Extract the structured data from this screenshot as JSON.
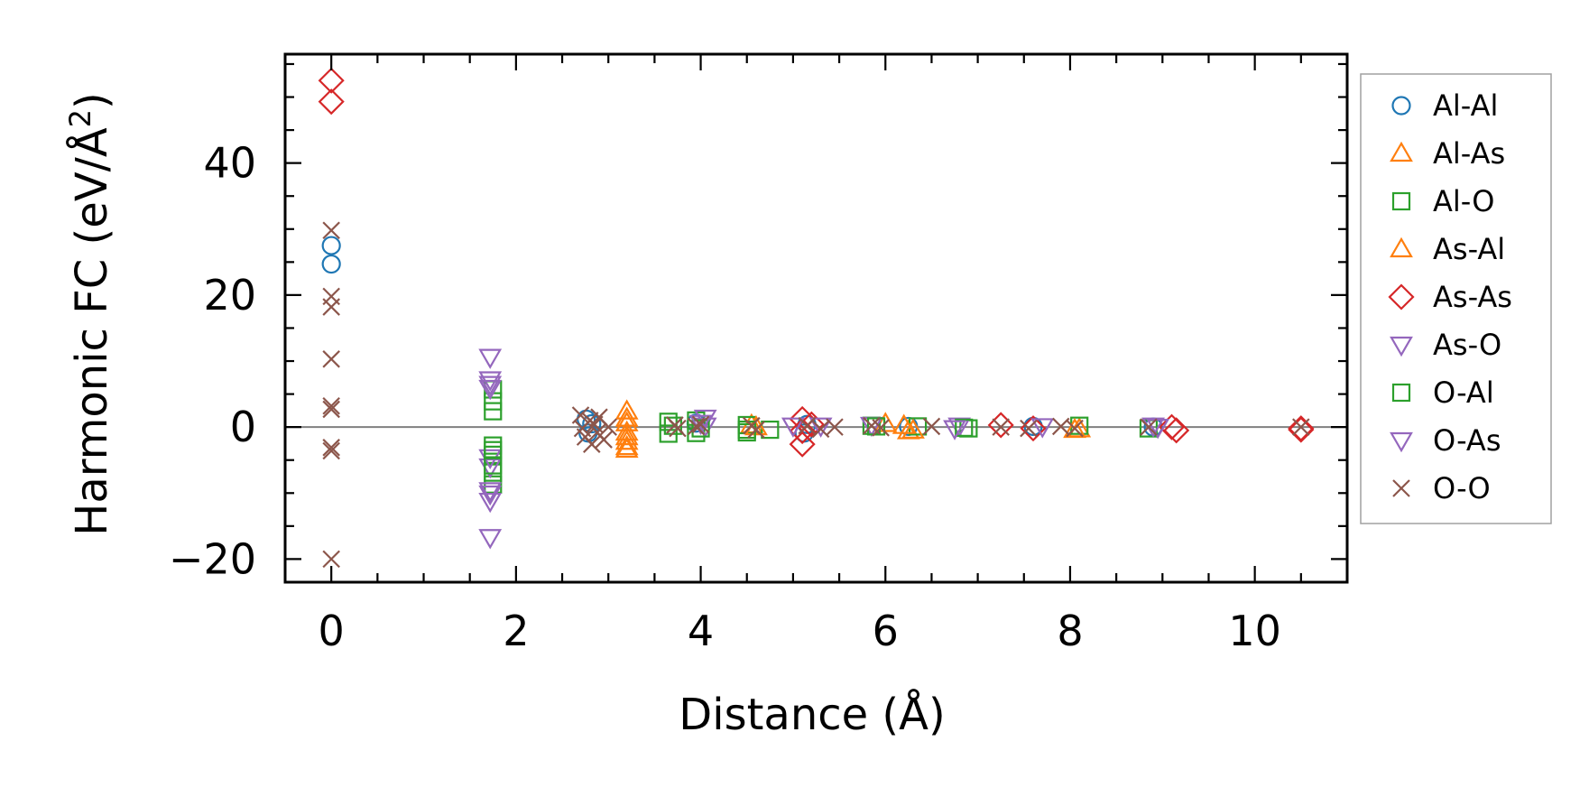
{
  "chart_data": {
    "type": "scatter",
    "title": "",
    "xlabel": "Distance (Å)",
    "ylabel_main": "Harmonic FC (eV/Å",
    "ylabel_sup": "2",
    "ylabel_close": ")",
    "xlim": [
      -0.5,
      11.0
    ],
    "ylim": [
      -23.5,
      56.5
    ],
    "x_ticks": [
      0,
      2,
      4,
      6,
      8,
      10
    ],
    "x_tick_labels": [
      "0",
      "2",
      "4",
      "6",
      "8",
      "10"
    ],
    "y_ticks": [
      -20,
      0,
      20,
      40
    ],
    "y_tick_labels": [
      "−20",
      "0",
      "20",
      "40"
    ],
    "reference_line_y": 0,
    "grid": false,
    "legend_position": "right-outside-top",
    "series": [
      {
        "name": "Al-Al",
        "marker": "circle",
        "color": "#1f77b4",
        "points": [
          [
            0,
            27.5
          ],
          [
            0,
            24.7
          ],
          [
            2.76,
            1.2
          ],
          [
            2.78,
            -0.9
          ],
          [
            2.82,
            0.5
          ],
          [
            3.95,
            0.6
          ],
          [
            5.12,
            -0.9
          ],
          [
            5.15,
            0.4
          ],
          [
            6.25,
            0.1
          ],
          [
            7.6,
            0.1
          ],
          [
            8.9,
            0.0
          ]
        ]
      },
      {
        "name": "Al-As",
        "marker": "triangle-up",
        "color": "#ff7f0e",
        "points": [
          [
            3.2,
            2.4
          ],
          [
            3.2,
            0.6
          ],
          [
            3.2,
            -0.8
          ],
          [
            3.2,
            -2.2
          ],
          [
            3.2,
            -3.4
          ],
          [
            4.55,
            0.3
          ],
          [
            6.0,
            0.5
          ],
          [
            6.25,
            -0.6
          ],
          [
            8.1,
            -0.3
          ]
        ]
      },
      {
        "name": "Al-O",
        "marker": "square",
        "color": "#2ca02c",
        "points": [
          [
            1.75,
            5.7
          ],
          [
            1.75,
            3.9
          ],
          [
            1.75,
            2.4
          ],
          [
            1.75,
            -2.8
          ],
          [
            1.75,
            -4.2
          ],
          [
            1.75,
            -6.9
          ],
          [
            1.75,
            -8.7
          ],
          [
            3.65,
            0.8
          ],
          [
            3.65,
            -1.0
          ],
          [
            3.95,
            1.0
          ],
          [
            3.95,
            -0.9
          ],
          [
            4.5,
            0.3
          ],
          [
            4.5,
            -0.8
          ],
          [
            4.75,
            -0.4
          ],
          [
            5.85,
            0.2
          ],
          [
            6.35,
            0.1
          ],
          [
            6.9,
            -0.2
          ],
          [
            8.1,
            0.2
          ],
          [
            8.85,
            -0.2
          ]
        ]
      },
      {
        "name": "As-Al",
        "marker": "triangle-up",
        "color": "#ff7f0e",
        "points": [
          [
            3.2,
            1.3
          ],
          [
            3.2,
            -1.5
          ],
          [
            3.2,
            -3.0
          ],
          [
            4.6,
            0.0
          ],
          [
            6.2,
            0.2
          ],
          [
            6.3,
            -0.5
          ],
          [
            8.05,
            -0.4
          ]
        ]
      },
      {
        "name": "As-As",
        "marker": "diamond",
        "color": "#d62728",
        "points": [
          [
            0,
            52.5
          ],
          [
            0,
            49.3
          ],
          [
            5.1,
            1.2
          ],
          [
            5.1,
            -0.6
          ],
          [
            5.1,
            -2.6
          ],
          [
            5.2,
            0.4
          ],
          [
            7.25,
            0.3
          ],
          [
            7.6,
            -0.2
          ],
          [
            9.1,
            0.0
          ],
          [
            9.15,
            -0.5
          ],
          [
            10.5,
            -0.2
          ],
          [
            10.5,
            -0.4
          ]
        ]
      },
      {
        "name": "As-O",
        "marker": "triangle-down",
        "color": "#9467bd",
        "points": [
          [
            1.72,
            10.6
          ],
          [
            1.72,
            7.2
          ],
          [
            1.72,
            5.9
          ],
          [
            1.72,
            -4.6
          ],
          [
            1.72,
            -6.0
          ],
          [
            1.72,
            -10.1
          ],
          [
            1.72,
            -11.2
          ],
          [
            1.72,
            -16.7
          ],
          [
            4.05,
            1.4
          ],
          [
            4.05,
            0.2
          ],
          [
            5.3,
            0.2
          ],
          [
            5.85,
            0.3
          ],
          [
            6.8,
            0.2
          ],
          [
            8.95,
            0.0
          ]
        ]
      },
      {
        "name": "O-Al",
        "marker": "square",
        "color": "#2ca02c",
        "points": [
          [
            1.75,
            -3.5
          ],
          [
            1.75,
            -5.8
          ],
          [
            3.7,
            0.2
          ],
          [
            4.0,
            -0.2
          ],
          [
            4.5,
            -0.4
          ],
          [
            5.9,
            0.1
          ],
          [
            6.85,
            -0.1
          ]
        ]
      },
      {
        "name": "O-As",
        "marker": "triangle-down",
        "color": "#9467bd",
        "points": [
          [
            1.72,
            6.5
          ],
          [
            1.72,
            -9.6
          ],
          [
            4.0,
            0.6
          ],
          [
            5.0,
            0.2
          ],
          [
            6.75,
            -0.2
          ],
          [
            7.7,
            0.1
          ],
          [
            8.9,
            0.2
          ]
        ]
      },
      {
        "name": "O-O",
        "marker": "x",
        "color": "#8c564b",
        "points": [
          [
            0,
            29.8
          ],
          [
            0,
            19.8
          ],
          [
            0,
            18.2
          ],
          [
            0,
            10.3
          ],
          [
            0,
            3.2
          ],
          [
            0,
            2.7
          ],
          [
            0,
            -3.1
          ],
          [
            0,
            -3.6
          ],
          [
            0,
            -20.0
          ],
          [
            2.7,
            1.8
          ],
          [
            2.72,
            -0.2
          ],
          [
            2.75,
            -1.5
          ],
          [
            2.8,
            1.0
          ],
          [
            2.82,
            -2.6
          ],
          [
            2.85,
            0.4
          ],
          [
            2.88,
            -0.8
          ],
          [
            2.9,
            1.5
          ],
          [
            2.95,
            -1.9
          ],
          [
            3.0,
            0.0
          ],
          [
            3.72,
            0.3
          ],
          [
            3.75,
            -0.2
          ],
          [
            3.95,
            0.1
          ],
          [
            4.0,
            0.4
          ],
          [
            4.55,
            0.2
          ],
          [
            4.6,
            -0.4
          ],
          [
            5.15,
            0.2
          ],
          [
            5.3,
            -0.3
          ],
          [
            5.45,
            0.0
          ],
          [
            5.85,
            0.2
          ],
          [
            5.95,
            -0.1
          ],
          [
            6.5,
            0.1
          ],
          [
            7.25,
            0.0
          ],
          [
            7.55,
            -0.2
          ],
          [
            7.9,
            0.1
          ],
          [
            8.05,
            -0.2
          ],
          [
            8.85,
            0.0
          ],
          [
            10.5,
            0.0
          ]
        ]
      }
    ]
  }
}
